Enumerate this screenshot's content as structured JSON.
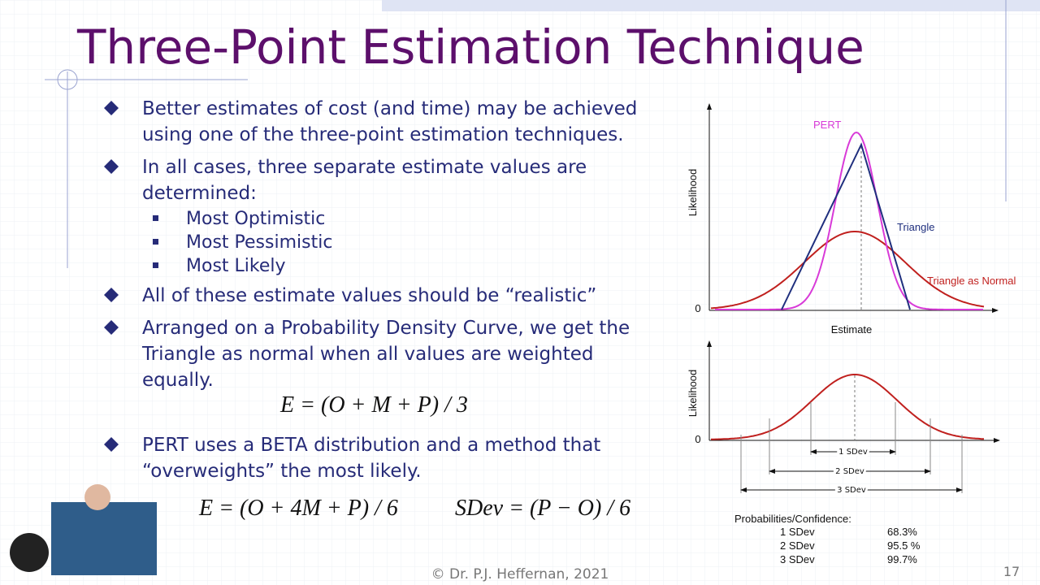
{
  "slide": {
    "title": "Three-Point Estimation Technique",
    "bullets": [
      {
        "lines": [
          "Better estimates of cost (and time) may be achieved",
          "using one of the three-point estimation techniques."
        ]
      },
      {
        "lines": [
          "In all cases, three separate estimate values are",
          "determined:"
        ],
        "subs": [
          "Most Optimistic",
          "Most Pessimistic",
          "Most Likely"
        ]
      },
      {
        "lines": [
          "All of these estimate values should be “realistic”"
        ]
      },
      {
        "lines": [
          "Arranged on a Probability Density Curve, we get the",
          "Triangle as normal when all values are weighted",
          "equally."
        ]
      },
      {
        "lines": [
          "PERT uses a BETA distribution and a method that",
          "“overweights” the most likely."
        ]
      }
    ],
    "formulas": [
      "E = (O + M + P) / 3",
      "E = (O + 4M + P) / 6",
      "SDev = (P − O) / 6"
    ],
    "figure1": {
      "y_label": "Likelihood",
      "x_label": "Estimate",
      "zero": "0",
      "pert": "PERT",
      "triangle": "Triangle",
      "normal": "Triangle as Normal"
    },
    "figure2": {
      "y_label": "Likelihood",
      "zero": "0",
      "ranges": [
        "1 SDev",
        "2 SDev",
        "3 SDev"
      ]
    },
    "probabilities": {
      "heading": "Probabilities/Confidence:",
      "rows": [
        [
          "1 SDev",
          "68.3%"
        ],
        [
          "2 SDev",
          "95.5 %"
        ],
        [
          "3 SDev",
          "99.7%"
        ]
      ]
    },
    "footer": "© Dr. P.J. Heffernan, 2021",
    "page_number": "17"
  }
}
